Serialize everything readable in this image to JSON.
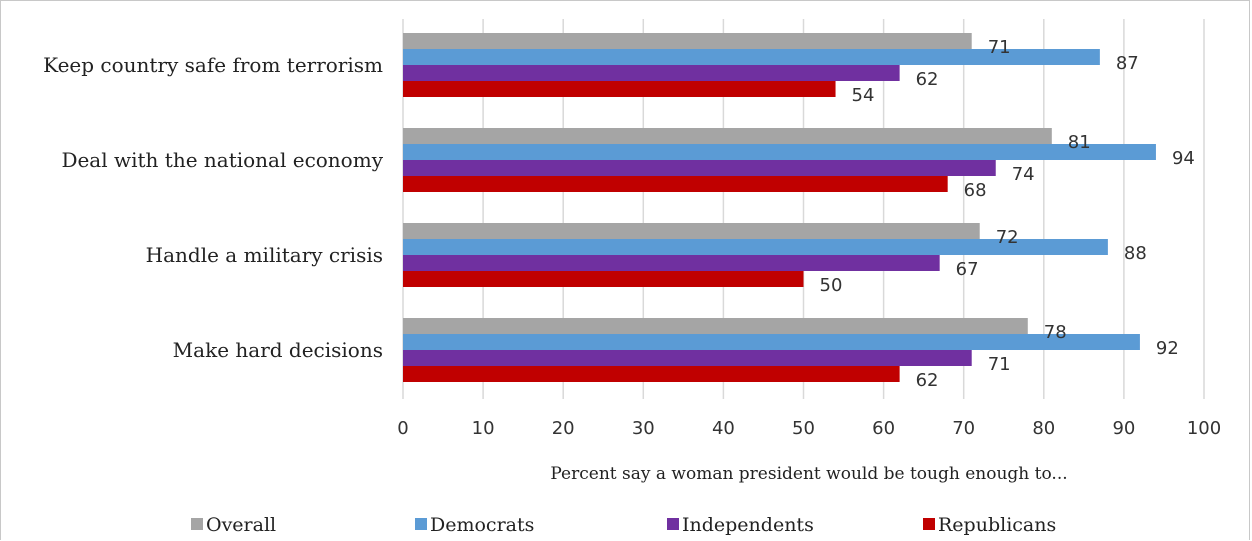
{
  "chart_data": {
    "type": "bar",
    "orientation": "horizontal",
    "categories": [
      "Keep country safe from terrorism",
      "Deal with the national economy",
      "Handle a military crisis",
      "Make hard decisions"
    ],
    "series": [
      {
        "name": "Overall",
        "color": "#a5a5a5",
        "values": [
          71,
          81,
          72,
          78
        ]
      },
      {
        "name": "Democrats",
        "color": "#5b9bd5",
        "values": [
          87,
          94,
          88,
          92
        ]
      },
      {
        "name": "Independents",
        "color": "#7030a0",
        "values": [
          62,
          74,
          67,
          71
        ]
      },
      {
        "name": "Republicans",
        "color": "#c00000",
        "values": [
          54,
          68,
          50,
          62
        ]
      }
    ],
    "xlabel": "Percent say a woman president would be tough enough to...",
    "ylabel": "",
    "xlim": [
      0,
      100
    ],
    "xticks": [
      "0",
      "10",
      "20",
      "30",
      "40",
      "50",
      "60",
      "70",
      "80",
      "90",
      "100"
    ],
    "grid": "vertical",
    "legend": "bottom"
  }
}
